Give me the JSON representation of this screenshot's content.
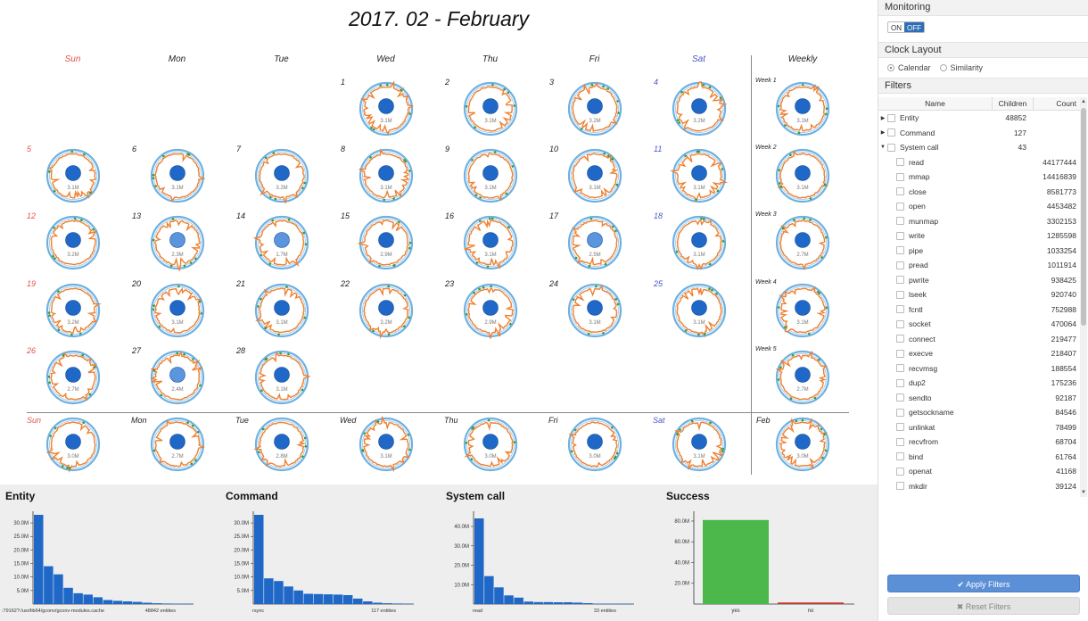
{
  "calendar": {
    "title": "2017. 02 - February",
    "day_headers": [
      "Sun",
      "Mon",
      "Tue",
      "Wed",
      "Thu",
      "Fri",
      "Sat"
    ],
    "weekly_header": "Weekly",
    "days": [
      {
        "day": "1",
        "col": 3,
        "row": 0,
        "value": "3.1M",
        "light": false
      },
      {
        "day": "2",
        "col": 4,
        "row": 0,
        "value": "3.1M",
        "light": false
      },
      {
        "day": "3",
        "col": 5,
        "row": 0,
        "value": "3.2M",
        "light": false
      },
      {
        "day": "4",
        "col": 6,
        "row": 0,
        "value": "3.2M",
        "light": false
      },
      {
        "day": "5",
        "col": 0,
        "row": 1,
        "value": "3.1M",
        "light": false
      },
      {
        "day": "6",
        "col": 1,
        "row": 1,
        "value": "3.1M",
        "light": false
      },
      {
        "day": "7",
        "col": 2,
        "row": 1,
        "value": "3.2M",
        "light": false
      },
      {
        "day": "8",
        "col": 3,
        "row": 1,
        "value": "3.1M",
        "light": false
      },
      {
        "day": "9",
        "col": 4,
        "row": 1,
        "value": "3.1M",
        "light": false
      },
      {
        "day": "10",
        "col": 5,
        "row": 1,
        "value": "3.1M",
        "light": false
      },
      {
        "day": "11",
        "col": 6,
        "row": 1,
        "value": "3.1M",
        "light": false
      },
      {
        "day": "12",
        "col": 0,
        "row": 2,
        "value": "3.2M",
        "light": false
      },
      {
        "day": "13",
        "col": 1,
        "row": 2,
        "value": "2.3M",
        "light": true
      },
      {
        "day": "14",
        "col": 2,
        "row": 2,
        "value": "1.7M",
        "light": true
      },
      {
        "day": "15",
        "col": 3,
        "row": 2,
        "value": "2.9M",
        "light": false
      },
      {
        "day": "16",
        "col": 4,
        "row": 2,
        "value": "3.1M",
        "light": false
      },
      {
        "day": "17",
        "col": 5,
        "row": 2,
        "value": "2.5M",
        "light": true
      },
      {
        "day": "18",
        "col": 6,
        "row": 2,
        "value": "3.1M",
        "light": false
      },
      {
        "day": "19",
        "col": 0,
        "row": 3,
        "value": "3.2M",
        "light": false
      },
      {
        "day": "20",
        "col": 1,
        "row": 3,
        "value": "3.1M",
        "light": false
      },
      {
        "day": "21",
        "col": 2,
        "row": 3,
        "value": "3.1M",
        "light": false
      },
      {
        "day": "22",
        "col": 3,
        "row": 3,
        "value": "3.2M",
        "light": false
      },
      {
        "day": "23",
        "col": 4,
        "row": 3,
        "value": "2.9M",
        "light": false
      },
      {
        "day": "24",
        "col": 5,
        "row": 3,
        "value": "3.1M",
        "light": false
      },
      {
        "day": "25",
        "col": 6,
        "row": 3,
        "value": "3.1M",
        "light": false
      },
      {
        "day": "26",
        "col": 0,
        "row": 4,
        "value": "2.7M",
        "light": false
      },
      {
        "day": "27",
        "col": 1,
        "row": 4,
        "value": "2.4M",
        "light": true
      },
      {
        "day": "28",
        "col": 2,
        "row": 4,
        "value": "3.1M",
        "light": false
      }
    ],
    "weeks": [
      {
        "label": "Week 1",
        "value": "3.1M"
      },
      {
        "label": "Week 2",
        "value": "3.1M"
      },
      {
        "label": "Week 3",
        "value": "2.7M"
      },
      {
        "label": "Week 4",
        "value": "3.1M"
      },
      {
        "label": "Week 5",
        "value": "2.7M"
      }
    ],
    "summary": [
      {
        "label": "Sun",
        "value": "3.0M"
      },
      {
        "label": "Mon",
        "value": "2.7M"
      },
      {
        "label": "Tue",
        "value": "2.8M"
      },
      {
        "label": "Wed",
        "value": "3.1M"
      },
      {
        "label": "Thu",
        "value": "3.0M"
      },
      {
        "label": "Fri",
        "value": "3.0M"
      },
      {
        "label": "Sat",
        "value": "3.1M"
      },
      {
        "label": "Feb",
        "value": "3.0M"
      }
    ]
  },
  "charts": {
    "entity": {
      "title": "Entity",
      "first_label": ":79162?:/usr/lib64/gconv/gconv-modules.cache",
      "count_label": "48842 entities"
    },
    "command": {
      "title": "Command",
      "first_label": "rsync",
      "count_label": "117 entities"
    },
    "syscall": {
      "title": "System call",
      "first_label": "read",
      "count_label": "33 entities"
    },
    "success": {
      "title": "Success"
    }
  },
  "chart_data": [
    {
      "type": "bar",
      "title": "Entity",
      "ylim": [
        0,
        33000000
      ],
      "yticks": [
        "5.0M",
        "10.0M",
        "15.0M",
        "20.0M",
        "25.0M",
        "30.0M"
      ],
      "ytick_values": [
        5000000,
        10000000,
        15000000,
        20000000,
        25000000,
        30000000
      ],
      "values": [
        33000000,
        14000000,
        11000000,
        6000000,
        4000000,
        3500000,
        2500000,
        1500000,
        1200000,
        1000000,
        800000,
        500000,
        300000,
        200000,
        150000,
        120000,
        100000,
        80000,
        60000,
        50000,
        40000,
        30000,
        25000,
        20000,
        15000,
        10000,
        8000,
        5000,
        4000,
        3000
      ]
    },
    {
      "type": "bar",
      "title": "Command",
      "ylim": [
        0,
        33000000
      ],
      "yticks": [
        "5.0M",
        "10.0M",
        "15.0M",
        "20.0M",
        "25.0M",
        "30.0M"
      ],
      "ytick_values": [
        5000000,
        10000000,
        15000000,
        20000000,
        25000000,
        30000000
      ],
      "values": [
        33000000,
        9500000,
        8500000,
        6500000,
        5000000,
        3800000,
        3700000,
        3600000,
        3500000,
        3300000,
        2000000,
        1000000,
        500000,
        300000,
        200000,
        150000,
        100000,
        80000,
        60000,
        40000,
        30000,
        20000,
        15000,
        10000
      ]
    },
    {
      "type": "bar",
      "title": "System call",
      "ylim": [
        0,
        46000000
      ],
      "yticks": [
        "10.0M",
        "20.0M",
        "30.0M",
        "40.0M"
      ],
      "ytick_values": [
        10000000,
        20000000,
        30000000,
        40000000
      ],
      "values": [
        44177444,
        14416839,
        8581773,
        4453482,
        3302153,
        1285598,
        1033254,
        1011914,
        938425,
        920740,
        752988,
        470064,
        219477,
        218407,
        188554,
        175236,
        92187,
        84546,
        78499,
        68704,
        61764,
        41168,
        39124
      ]
    },
    {
      "type": "bar",
      "title": "Success",
      "categories": [
        "yes",
        "no"
      ],
      "ylim": [
        0,
        86000000
      ],
      "yticks": [
        "20.0M",
        "40.0M",
        "60.0M",
        "80.0M"
      ],
      "ytick_values": [
        20000000,
        40000000,
        60000000,
        80000000
      ],
      "values": [
        81000000,
        1500000
      ],
      "colors": [
        "#4cb84c",
        "#c0392b"
      ]
    }
  ],
  "sidebar": {
    "monitoring_title": "Monitoring",
    "toggle_on": "ON",
    "toggle_off": "OFF",
    "clock_layout_title": "Clock Layout",
    "layout_calendar": "Calendar",
    "layout_similarity": "Similarity",
    "filters_title": "Filters",
    "col_name": "Name",
    "col_children": "Children",
    "col_count": "Count",
    "groups": [
      {
        "name": "Entity",
        "children": "48852",
        "caret": "▶"
      },
      {
        "name": "Command",
        "children": "127",
        "caret": "▶"
      },
      {
        "name": "System call",
        "children": "43",
        "caret": "▼"
      }
    ],
    "syscalls": [
      {
        "name": "read",
        "count": "44177444"
      },
      {
        "name": "mmap",
        "count": "14416839"
      },
      {
        "name": "close",
        "count": "8581773"
      },
      {
        "name": "open",
        "count": "4453482"
      },
      {
        "name": "munmap",
        "count": "3302153"
      },
      {
        "name": "write",
        "count": "1285598"
      },
      {
        "name": "pipe",
        "count": "1033254"
      },
      {
        "name": "pread",
        "count": "1011914"
      },
      {
        "name": "pwrite",
        "count": "938425"
      },
      {
        "name": "lseek",
        "count": "920740"
      },
      {
        "name": "fcntl",
        "count": "752988"
      },
      {
        "name": "socket",
        "count": "470064"
      },
      {
        "name": "connect",
        "count": "219477"
      },
      {
        "name": "execve",
        "count": "218407"
      },
      {
        "name": "recvmsg",
        "count": "188554"
      },
      {
        "name": "dup2",
        "count": "175236"
      },
      {
        "name": "sendto",
        "count": "92187"
      },
      {
        "name": "getsockname",
        "count": "84546"
      },
      {
        "name": "unlinkat",
        "count": "78499"
      },
      {
        "name": "recvfrom",
        "count": "68704"
      },
      {
        "name": "bind",
        "count": "61764"
      },
      {
        "name": "openat",
        "count": "41168"
      },
      {
        "name": "mkdir",
        "count": "39124"
      }
    ],
    "apply_label": "✔ Apply Filters",
    "reset_label": "✖ Reset Filters"
  },
  "colors": {
    "ring": "#6fb0e0",
    "orange": "#f07f2e",
    "green": "#3b9a3b",
    "dot": "#1f68c7",
    "dot_light": "#5a95dd",
    "bar": "#1f68c7"
  }
}
